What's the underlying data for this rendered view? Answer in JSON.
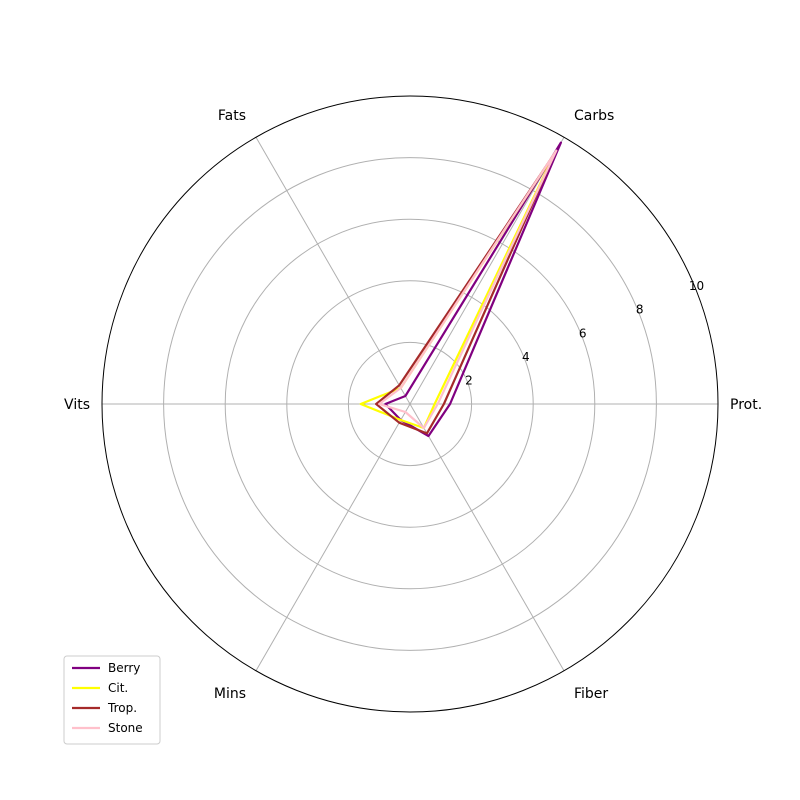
{
  "chart_data": {
    "type": "radar",
    "axes": [
      "Prot.",
      "Carbs",
      "Fats",
      "Vits",
      "Mins",
      "Fiber"
    ],
    "rlim": [
      0,
      10
    ],
    "rticks": [
      2,
      4,
      6,
      8,
      10
    ],
    "grid": true,
    "legend_position": "bottom-left",
    "series": [
      {
        "name": "Berry",
        "color": "#800080",
        "values": [
          1.3,
          9.8,
          0.3,
          0.8,
          0.6,
          1.2
        ]
      },
      {
        "name": "Cit.",
        "color": "#ffff00",
        "values": [
          0.8,
          9.4,
          0.6,
          1.6,
          0.6,
          0.9
        ]
      },
      {
        "name": "Trop.",
        "color": "#a52a2a",
        "values": [
          1.1,
          9.4,
          0.7,
          1.1,
          0.7,
          1.1
        ]
      },
      {
        "name": "Stone",
        "color": "#ffc0cb",
        "values": [
          0.9,
          9.5,
          0.6,
          1.0,
          0.3,
          0.9
        ]
      }
    ]
  }
}
